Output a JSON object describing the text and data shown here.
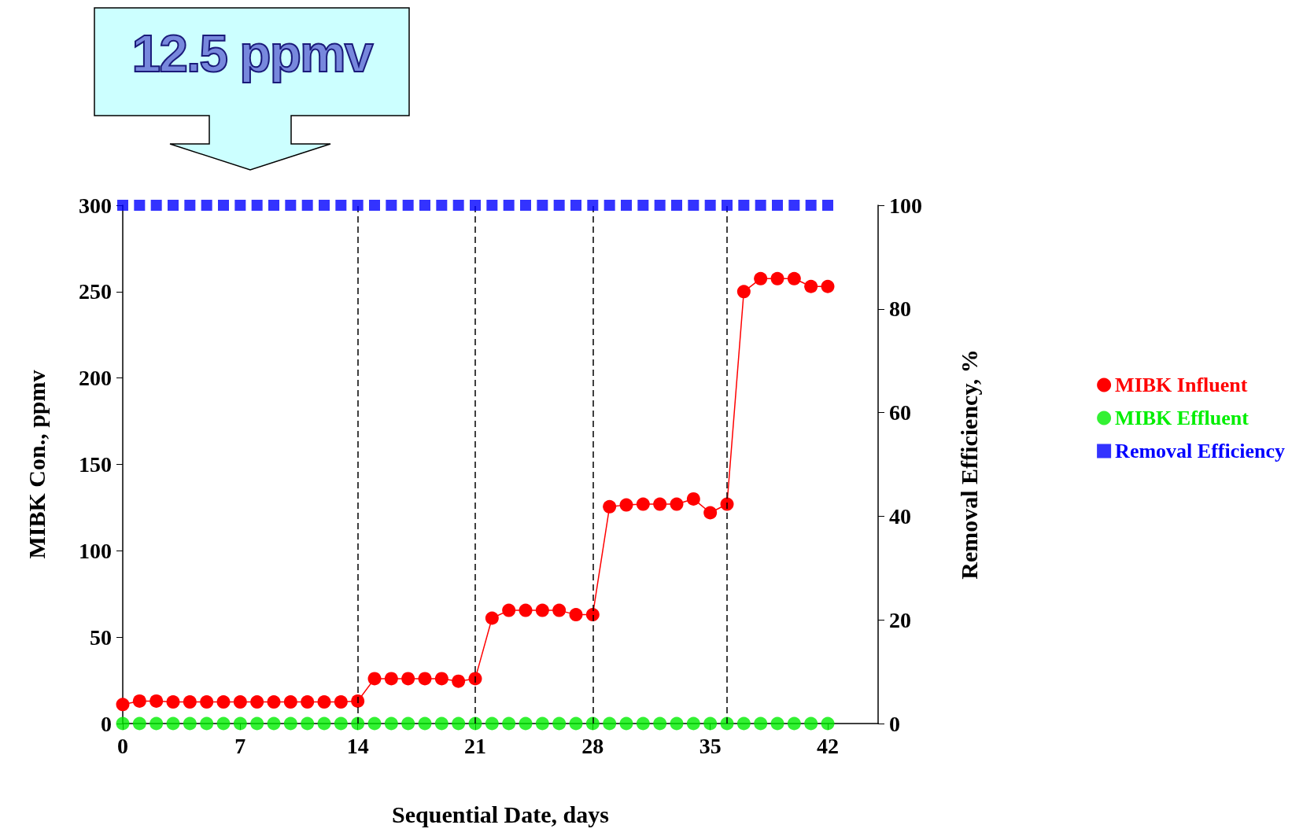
{
  "chart_data": {
    "type": "line",
    "xlabel": "Sequential Date, days",
    "ylabel": "MIBK Con., ppmv",
    "y2label": "Removal Efficiency, %",
    "annotations": [
      "12.5 ppmv"
    ],
    "x": [
      0,
      1,
      2,
      3,
      4,
      5,
      6,
      7,
      8,
      9,
      10,
      11,
      12,
      13,
      14,
      15,
      16,
      17,
      18,
      19,
      20,
      21,
      22,
      23,
      24,
      25,
      26,
      27,
      28,
      29,
      30,
      31,
      32,
      33,
      34,
      35,
      36,
      37,
      38,
      39,
      40,
      41,
      42
    ],
    "series": [
      {
        "name": "MIBK Influent",
        "marker": "circle",
        "color": "#ff0000",
        "values": [
          11,
          13,
          13,
          12.5,
          12.5,
          12.5,
          12.5,
          12.5,
          12.5,
          12.5,
          12.5,
          12.5,
          12.5,
          12.5,
          13,
          26,
          26,
          26,
          26,
          26,
          24.5,
          26,
          61,
          65.5,
          65.5,
          65.5,
          65.5,
          63,
          63,
          125.5,
          126.5,
          127,
          127,
          127,
          130,
          122,
          127,
          250,
          257.5,
          257.5,
          257.5,
          253,
          253
        ]
      },
      {
        "name": "MIBK Effluent",
        "type": "scatter",
        "marker": "circle",
        "color": "#00ee00",
        "values": [
          0,
          0,
          0,
          0,
          0,
          0,
          0,
          0,
          0,
          0,
          0,
          0,
          0,
          0,
          0,
          0,
          0,
          0,
          0,
          0,
          0,
          0,
          0,
          0,
          0,
          0,
          0,
          0,
          0,
          0,
          0,
          0,
          0,
          0,
          0,
          0,
          0,
          0,
          0,
          0,
          0,
          0,
          0
        ]
      },
      {
        "name": "Removal Efficiency",
        "type": "scatter",
        "marker": "square",
        "axis": "y2",
        "color": "#0000ff",
        "values": [
          100,
          100,
          100,
          100,
          100,
          100,
          100,
          100,
          100,
          100,
          100,
          100,
          100,
          100,
          100,
          100,
          100,
          100,
          100,
          100,
          100,
          100,
          100,
          100,
          100,
          100,
          100,
          100,
          100,
          100,
          100,
          100,
          100,
          100,
          100,
          100,
          100,
          100,
          100,
          100,
          100,
          100,
          100
        ]
      }
    ],
    "xlim": [
      0,
      45
    ],
    "xticks": [
      0,
      7,
      14,
      21,
      28,
      35,
      42
    ],
    "ylim": [
      0,
      300
    ],
    "yticks": [
      0,
      50,
      100,
      150,
      200,
      250,
      300
    ],
    "y2lim": [
      0,
      100
    ],
    "y2ticks": [
      0,
      20,
      40,
      60,
      80,
      100
    ],
    "ref_lines": [
      {
        "axis": "x",
        "value": 14,
        "color": "#000000",
        "line_style": "dashed"
      },
      {
        "axis": "x",
        "value": 21,
        "color": "#000000",
        "line_style": "dashed"
      },
      {
        "axis": "x",
        "value": 28,
        "color": "#000000",
        "line_style": "dashed"
      },
      {
        "axis": "x",
        "value": 36,
        "color": "#000000",
        "line_style": "dashed"
      }
    ],
    "legend": "right",
    "grid": false
  }
}
